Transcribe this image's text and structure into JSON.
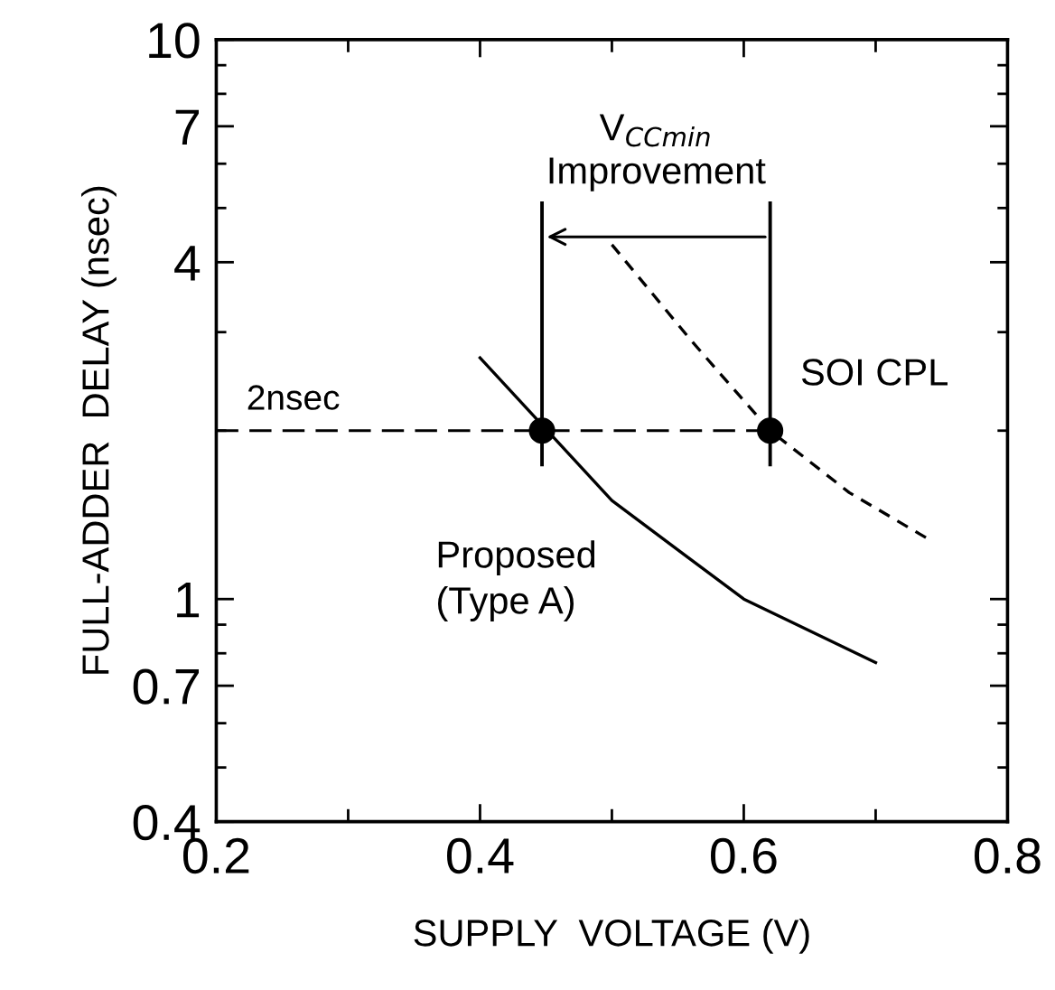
{
  "chart_data": {
    "type": "line",
    "xlabel": "SUPPLY  VOLTAGE (V)",
    "ylabel": "FULL-ADDER  DELAY (nsec)",
    "log": "y",
    "xlim": [
      0.2,
      0.8
    ],
    "xticks": [
      0.2,
      {
        "value": 0.3,
        "label": null
      },
      0.4,
      {
        "value": 0.5,
        "label": null
      },
      0.6,
      {
        "value": 0.7,
        "label": null
      },
      0.8
    ],
    "ylim": [
      0.4,
      10
    ],
    "yticks": [
      0.4,
      {
        "value": 0.5,
        "label": null
      },
      {
        "value": 0.6,
        "label": null
      },
      0.7,
      {
        "value": 0.8,
        "label": null
      },
      {
        "value": 0.9,
        "label": null
      },
      1,
      {
        "value": 2,
        "label": null
      },
      {
        "value": 3,
        "label": null
      },
      4,
      {
        "value": 5,
        "label": null
      },
      {
        "value": 6,
        "label": null
      },
      7,
      {
        "value": 8,
        "label": null
      },
      {
        "value": 9,
        "label": null
      },
      10
    ],
    "grid": false,
    "legend": false,
    "series": [
      {
        "name": "Proposed\n(Type A)",
        "color": "#000000",
        "line_style": "solid",
        "marker": "none",
        "x": [
          0.4,
          0.5,
          0.6,
          0.7
        ],
        "values": [
          2.7,
          1.5,
          1.0,
          0.77
        ]
      },
      {
        "name": "SOI CPL",
        "color": "#000000",
        "line_style": "dashed",
        "marker": "none",
        "x": [
          0.5,
          0.56,
          0.62,
          0.68,
          0.74
        ],
        "values": [
          4.3,
          2.9,
          2.0,
          1.55,
          1.28
        ]
      },
      {
        "type": "scatter",
        "color": "#000000",
        "marker": "circle",
        "x": [
          0.447,
          0.62
        ],
        "values": [
          2,
          2
        ]
      }
    ],
    "ref_lines": [
      {
        "axis": "y",
        "value": 2,
        "label": "2nsec",
        "line_style": "dashed",
        "color": "#000000"
      }
    ],
    "annotations": [
      "V$_{CCmin}$\nImprovement"
    ]
  }
}
